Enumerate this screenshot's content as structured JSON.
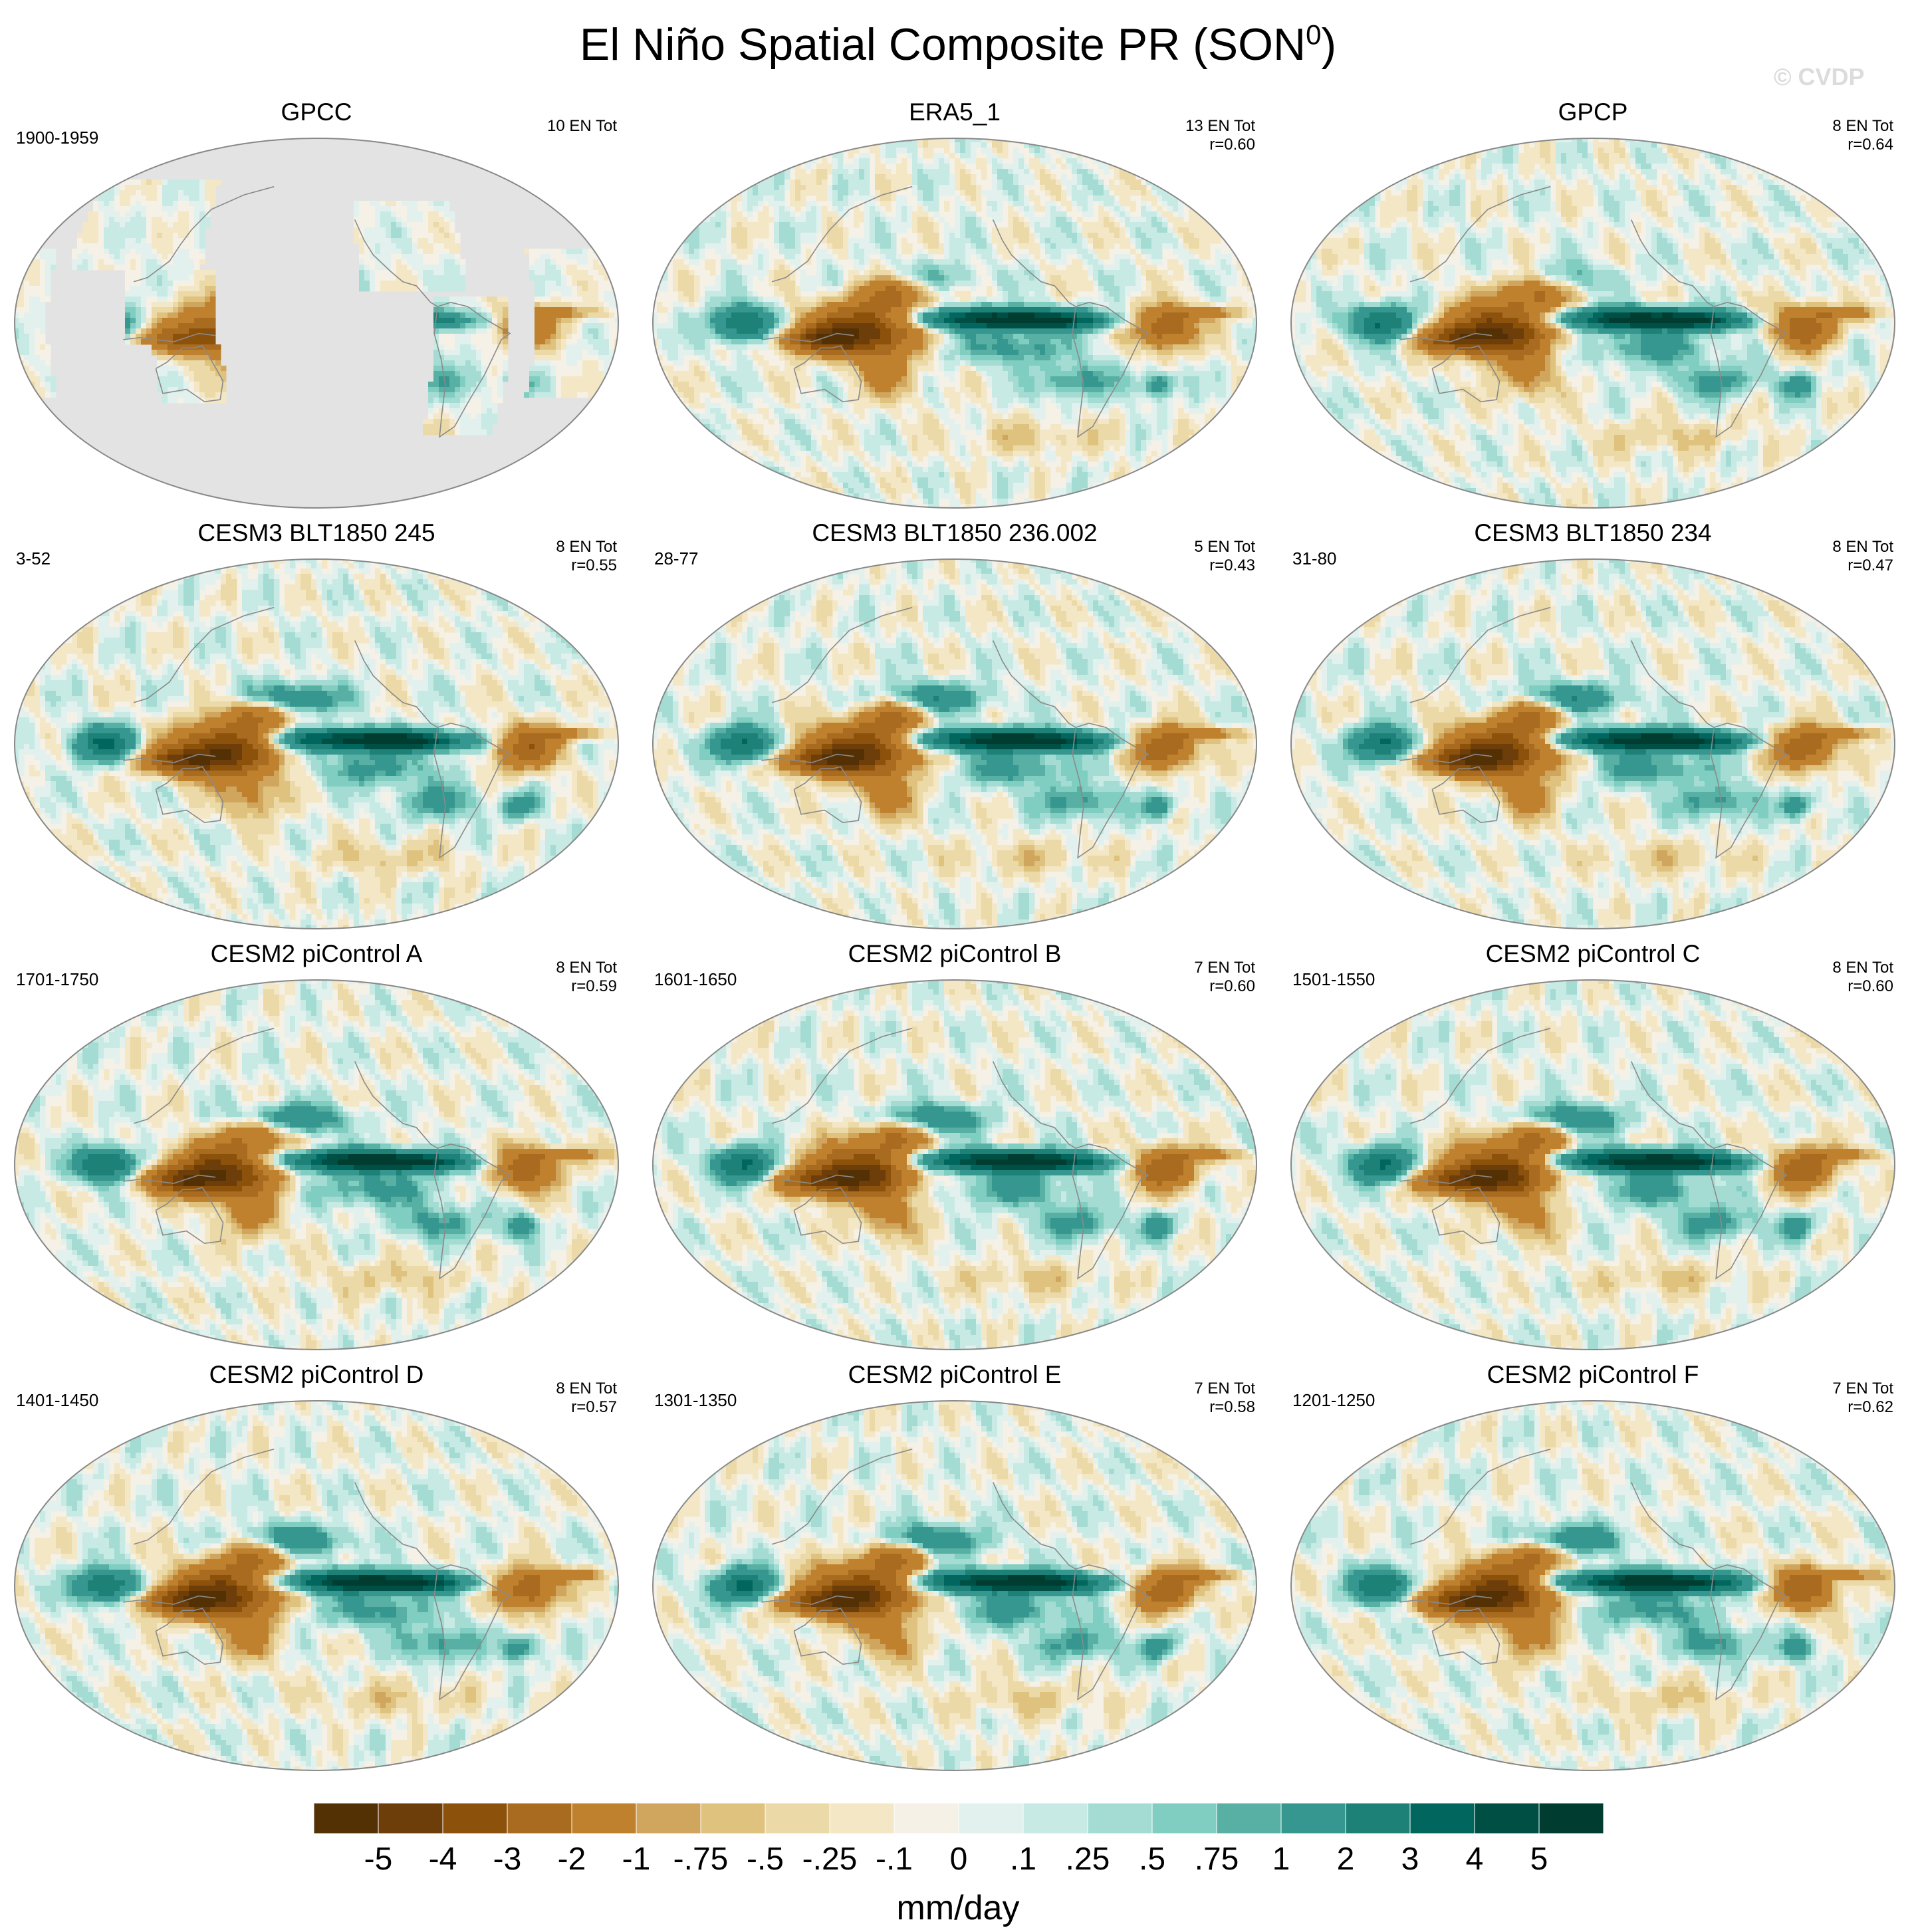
{
  "page": {
    "title": "El Niño Spatial Composite PR (SON",
    "title_sup": "0",
    "title_close": ")",
    "watermark": "© CVDP"
  },
  "panels": [
    {
      "name": "GPCC",
      "years": "1900-1959",
      "en": "10 EN Tot",
      "r": "",
      "kind": "gpcc",
      "seed": 3
    },
    {
      "name": "ERA5_1",
      "years": "",
      "en": "13 EN Tot",
      "r": "r=0.60",
      "kind": "obs",
      "seed": 11
    },
    {
      "name": "GPCP",
      "years": "",
      "en": "8 EN Tot",
      "r": "r=0.64",
      "kind": "obs",
      "seed": 17
    },
    {
      "name": "CESM3 BLT1850 245",
      "years": "3-52",
      "en": "8 EN Tot",
      "r": "r=0.55",
      "kind": "model",
      "seed": 23
    },
    {
      "name": "CESM3 BLT1850 236.002",
      "years": "28-77",
      "en": "5 EN Tot",
      "r": "r=0.43",
      "kind": "model",
      "seed": 29
    },
    {
      "name": "CESM3 BLT1850 234",
      "years": "31-80",
      "en": "8 EN Tot",
      "r": "r=0.47",
      "kind": "model",
      "seed": 31
    },
    {
      "name": "CESM2 piControl A",
      "years": "1701-1750",
      "en": "8 EN Tot",
      "r": "r=0.59",
      "kind": "model",
      "seed": 37
    },
    {
      "name": "CESM2 piControl B",
      "years": "1601-1650",
      "en": "7 EN Tot",
      "r": "r=0.60",
      "kind": "model",
      "seed": 41
    },
    {
      "name": "CESM2 piControl C",
      "years": "1501-1550",
      "en": "8 EN Tot",
      "r": "r=0.60",
      "kind": "model",
      "seed": 43
    },
    {
      "name": "CESM2 piControl D",
      "years": "1401-1450",
      "en": "8 EN Tot",
      "r": "r=0.57",
      "kind": "model",
      "seed": 47
    },
    {
      "name": "CESM2 piControl E",
      "years": "1301-1350",
      "en": "7 EN Tot",
      "r": "r=0.58",
      "kind": "model",
      "seed": 53
    },
    {
      "name": "CESM2 piControl F",
      "years": "1201-1250",
      "en": "7 EN Tot",
      "r": "r=0.62",
      "kind": "model",
      "seed": 59
    }
  ],
  "chart_data": {
    "type": "heatmap",
    "title": "El Niño Spatial Composite PR (SON0)",
    "projection": "Robinson, Pacific-centered",
    "units": "mm/day",
    "colorbar": {
      "levels": [
        "-5",
        "-4",
        "-3",
        "-2",
        "-1",
        "-.75",
        "-.5",
        "-.25",
        "-.1",
        "0",
        ".1",
        ".25",
        ".5",
        ".75",
        "1",
        "2",
        "3",
        "4",
        "5"
      ],
      "colors": [
        "#543005",
        "#6e3e0a",
        "#8c510a",
        "#a86b1f",
        "#bf812d",
        "#d0a55e",
        "#dfc27d",
        "#ecd9a8",
        "#f4e7c6",
        "#f5f1e7",
        "#e2f1ee",
        "#c7eae5",
        "#a4dcd3",
        "#80cdc1",
        "#57b0a3",
        "#35978f",
        "#1d8177",
        "#01665e",
        "#004f45",
        "#003c30"
      ]
    },
    "panel_names": [
      "GPCC",
      "ERA5_1",
      "GPCP",
      "CESM3 BLT1850 245",
      "CESM3 BLT1850 236.002",
      "CESM3 BLT1850 234",
      "CESM2 piControl A",
      "CESM2 piControl B",
      "CESM2 piControl C",
      "CESM2 piControl D",
      "CESM2 piControl E",
      "CESM2 piControl F"
    ],
    "el_nino_count": [
      10,
      13,
      8,
      8,
      5,
      8,
      8,
      7,
      8,
      8,
      7,
      7
    ],
    "pattern_correlation": [
      null,
      0.6,
      0.64,
      0.55,
      0.43,
      0.47,
      0.59,
      0.6,
      0.6,
      0.57,
      0.58,
      0.62
    ]
  }
}
